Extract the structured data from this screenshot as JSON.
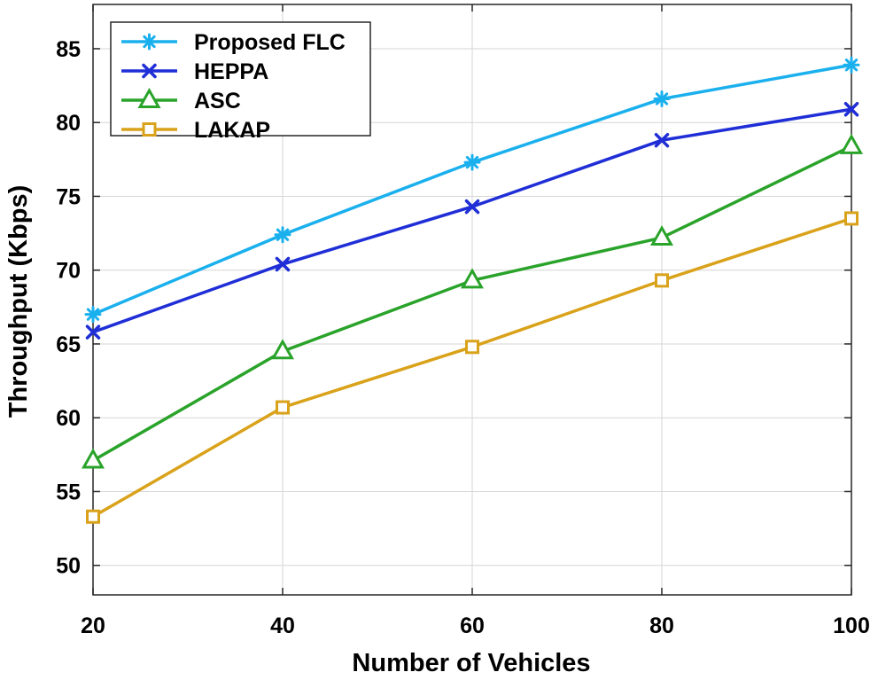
{
  "chart_data": {
    "type": "line",
    "title": "",
    "xlabel": "Number of Vehicles",
    "ylabel": "Throughput (Kbps)",
    "x": [
      20,
      40,
      60,
      80,
      100
    ],
    "xlim": [
      20,
      100
    ],
    "ylim": [
      48,
      88
    ],
    "xticks": [
      20,
      40,
      60,
      80,
      100
    ],
    "yticks": [
      50,
      55,
      60,
      65,
      70,
      75,
      80,
      85
    ],
    "grid": true,
    "legend_position": "top-left",
    "series": [
      {
        "name": "Proposed FLC",
        "color": "#1ab0ee",
        "marker": "asterisk",
        "values": [
          67.0,
          72.4,
          77.3,
          81.6,
          83.9
        ]
      },
      {
        "name": "HEPPA",
        "color": "#1f2ed6",
        "marker": "x",
        "values": [
          65.8,
          70.4,
          74.3,
          78.8,
          80.9
        ]
      },
      {
        "name": "ASC",
        "color": "#2aa32a",
        "marker": "triangle",
        "values": [
          57.1,
          64.5,
          69.3,
          72.2,
          78.4
        ]
      },
      {
        "name": "LAKAP",
        "color": "#d9a21a",
        "marker": "square",
        "values": [
          53.3,
          60.7,
          64.8,
          69.3,
          73.5
        ]
      }
    ]
  }
}
